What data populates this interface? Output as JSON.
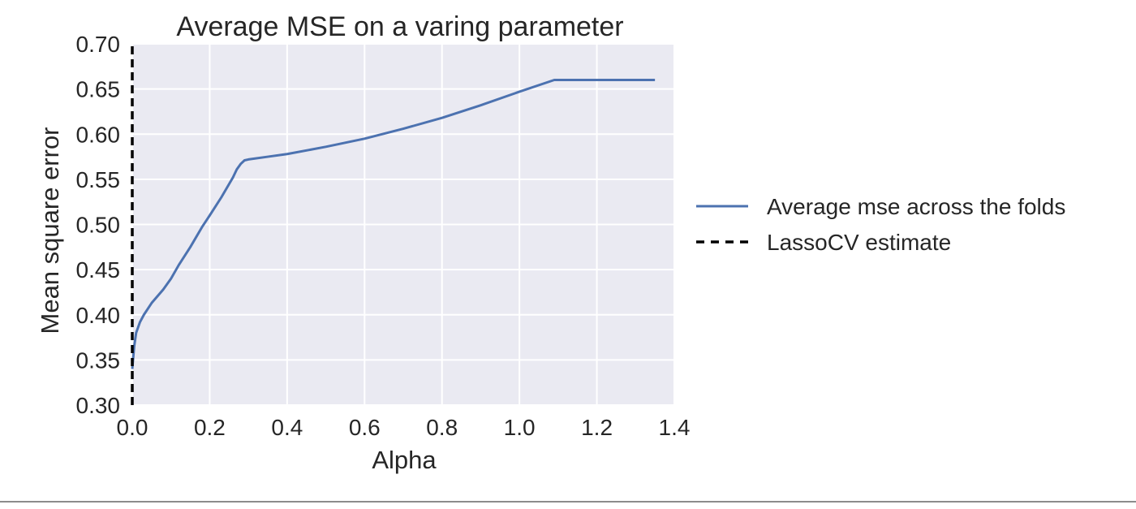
{
  "chart_data": {
    "type": "line",
    "title": "Average MSE on a varing parameter",
    "xlabel": "Alpha",
    "ylabel": "Mean square error",
    "xlim": [
      0.0,
      1.4
    ],
    "ylim": [
      0.3,
      0.7
    ],
    "xticks": [
      0.0,
      0.2,
      0.4,
      0.6,
      0.8,
      1.0,
      1.2,
      1.4
    ],
    "xtick_labels": [
      "0.0",
      "0.2",
      "0.4",
      "0.6",
      "0.8",
      "1.0",
      "1.2",
      "1.4"
    ],
    "yticks": [
      0.3,
      0.35,
      0.4,
      0.45,
      0.5,
      0.55,
      0.6,
      0.65,
      0.7
    ],
    "ytick_labels": [
      "0.30",
      "0.35",
      "0.40",
      "0.45",
      "0.50",
      "0.55",
      "0.60",
      "0.65",
      "0.70"
    ],
    "grid": true,
    "legend_position": "right, outside the plot area",
    "background_color": "#EAEAF2",
    "series": [
      {
        "name": "Average mse across the folds",
        "color": "#4C72B0",
        "style": "solid",
        "x": [
          0.0,
          0.005,
          0.01,
          0.02,
          0.03,
          0.05,
          0.08,
          0.1,
          0.12,
          0.15,
          0.18,
          0.2,
          0.23,
          0.26,
          0.27,
          0.28,
          0.29,
          0.3,
          0.35,
          0.4,
          0.5,
          0.6,
          0.7,
          0.8,
          0.9,
          1.0,
          1.09,
          1.2,
          1.3,
          1.35
        ],
        "y": [
          0.34,
          0.365,
          0.38,
          0.392,
          0.4,
          0.413,
          0.428,
          0.44,
          0.455,
          0.475,
          0.497,
          0.51,
          0.53,
          0.552,
          0.561,
          0.567,
          0.571,
          0.572,
          0.575,
          0.578,
          0.586,
          0.595,
          0.606,
          0.618,
          0.632,
          0.647,
          0.66,
          0.66,
          0.66,
          0.66
        ]
      },
      {
        "name": "LassoCV estimate",
        "color": "#000000",
        "style": "dashed",
        "x": [
          0.0,
          0.0
        ],
        "y": [
          0.3,
          0.7
        ]
      }
    ]
  }
}
